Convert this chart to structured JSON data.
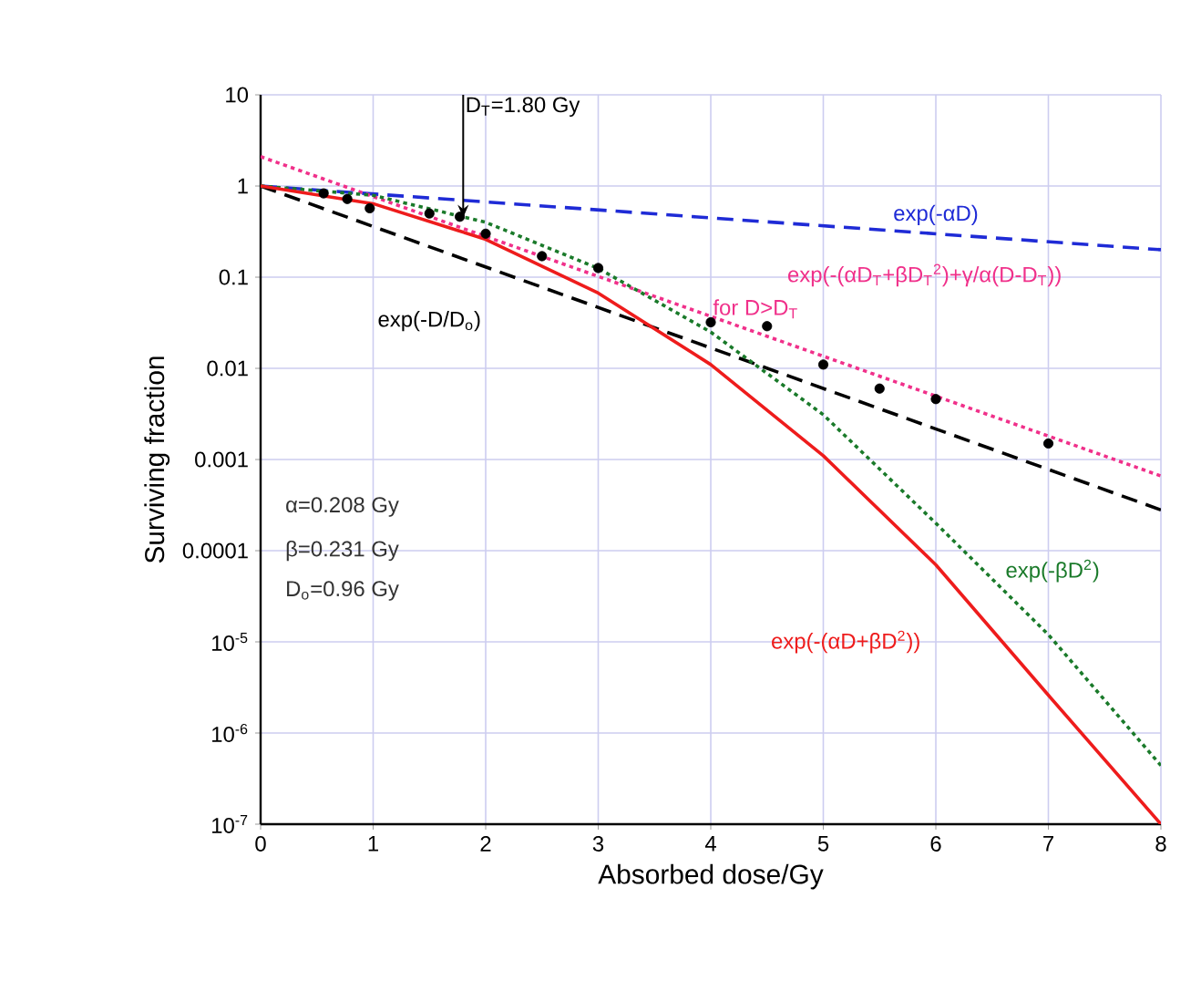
{
  "chart_data": {
    "type": "line",
    "xlabel": "Absorbed dose/Gy",
    "ylabel": "Surviving fraction",
    "log": "y",
    "grid": true,
    "xlim": [
      0,
      8
    ],
    "ylim": [
      1e-07,
      10
    ],
    "xticks": [
      0,
      1,
      2,
      3,
      4,
      5,
      6,
      7,
      8
    ],
    "yticks": [
      10,
      1,
      0.1,
      0.01,
      0.001,
      0.0001,
      {
        "value": 1e-05,
        "label": "10$^{-5}$"
      },
      {
        "value": 1e-06,
        "label": "10$^{-6}$"
      },
      {
        "value": 1e-07,
        "label": "10$^{-7}$"
      }
    ],
    "series": [
      {
        "type": "scatter",
        "marker": "circle",
        "color": "#000000",
        "x": [
          0.56,
          0.77,
          0.97,
          1.5,
          1.77,
          2,
          2.5,
          3,
          4,
          4.5,
          5,
          5.5,
          6,
          7
        ],
        "values": [
          0.83,
          0.72,
          0.57,
          0.5,
          0.46,
          0.3,
          0.17,
          0.126,
          0.032,
          0.029,
          0.011,
          0.006,
          0.0046,
          0.0015
        ]
      },
      {
        "name": "exp(-αD)",
        "color": "#1f2bd6",
        "line_style": "dashed",
        "x": [
          0,
          8
        ],
        "values": [
          1,
          0.2
        ]
      },
      {
        "name": "exp(-(αD$_{T}$+βD$_{T}$$^{2}$)+γ/α(D-D$_{T}$))",
        "color": "#f0308a",
        "line_style": "dotted",
        "x": [
          0,
          8
        ],
        "values": [
          2.1,
          0.00066
        ]
      },
      {
        "name": "exp(-D/D$_{o}$)",
        "color": "#000000",
        "line_style": "dashed",
        "x": [
          0,
          8
        ],
        "values": [
          1,
          0.00028
        ]
      },
      {
        "name": "exp(-βD$^{2}$)",
        "color": "#1a7a2a",
        "line_style": "dotted",
        "x": [
          0,
          1,
          2,
          3,
          4,
          5,
          6,
          7,
          8
        ],
        "values": [
          1,
          0.79,
          0.4,
          0.125,
          0.025,
          0.0031,
          0.0002,
          1.2e-05,
          4.4e-07
        ]
      },
      {
        "name": "exp(-(αD+βD$^{2}$))",
        "color": "#ee1c1c",
        "line_style": "solid",
        "x": [
          0,
          1,
          2,
          3,
          4,
          5,
          6,
          7,
          8
        ],
        "values": [
          1,
          0.64,
          0.26,
          0.067,
          0.011,
          0.0011,
          7e-05,
          2.6e-06,
          1e-07
        ]
      }
    ],
    "annotations": [
      {
        "text": "D$_{T}$=1.80 Gy",
        "x": 1.8,
        "y": 0.45
      },
      "for D>D$_{T}$",
      "α=0.208 Gy",
      "β=0.231 Gy",
      "D$_{o}$=0.96 Gy"
    ]
  }
}
